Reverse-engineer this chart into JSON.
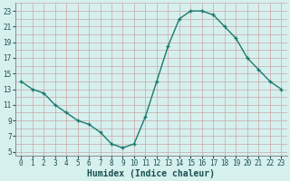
{
  "x": [
    0,
    1,
    2,
    3,
    4,
    5,
    6,
    7,
    8,
    9,
    10,
    11,
    12,
    13,
    14,
    15,
    16,
    17,
    18,
    19,
    20,
    21,
    22,
    23
  ],
  "y": [
    14,
    13,
    12.5,
    11,
    10,
    9,
    8.5,
    7.5,
    6,
    5.5,
    6,
    9.5,
    14,
    18.5,
    22,
    23,
    23,
    22.5,
    21,
    19.5,
    17,
    15.5,
    14,
    13
  ],
  "line_color": "#1a7a6e",
  "marker_color": "#1a7a6e",
  "bg_color": "#d6f0ee",
  "grid_color": "#c8a8a8",
  "xlabel": "Humidex (Indice chaleur)",
  "xlim": [
    -0.5,
    23.5
  ],
  "ylim": [
    4.5,
    24
  ],
  "yticks": [
    5,
    7,
    9,
    11,
    13,
    15,
    17,
    19,
    21,
    23
  ],
  "xticks": [
    0,
    1,
    2,
    3,
    4,
    5,
    6,
    7,
    8,
    9,
    10,
    11,
    12,
    13,
    14,
    15,
    16,
    17,
    18,
    19,
    20,
    21,
    22,
    23
  ],
  "font_size_label": 7,
  "font_size_tick": 5.5,
  "marker_size": 3.0,
  "line_width": 1.0
}
